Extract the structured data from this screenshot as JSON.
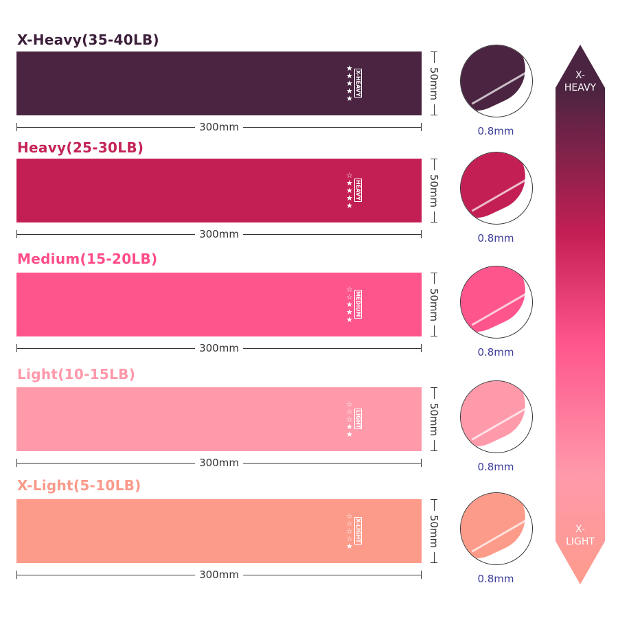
{
  "bands": [
    {
      "title": "X-Heavy(35-40LB)",
      "tag": "X-HEAVY",
      "stars_filled": 5,
      "stars_total": 5,
      "length": "300mm",
      "width": "50mm",
      "thickness": "0.8mm",
      "color": "#4a2440",
      "title_color": "#3c1f3a"
    },
    {
      "title": "Heavy(25-30LB)",
      "tag": "HEAVY",
      "stars_filled": 4,
      "stars_total": 5,
      "length": "300mm",
      "width": "50mm",
      "thickness": "0.8mm",
      "color": "#c41f55",
      "title_color": "#c42457"
    },
    {
      "title": "Medium(15-20LB)",
      "tag": "MEDIUM",
      "stars_filled": 3,
      "stars_total": 5,
      "length": "300mm",
      "width": "50mm",
      "thickness": "0.8mm",
      "color": "#fe558c",
      "title_color": "#ff4c88"
    },
    {
      "title": "Light(10-15LB)",
      "tag": "LIGHT",
      "stars_filled": 2,
      "stars_total": 5,
      "length": "300mm",
      "width": "50mm",
      "thickness": "0.8mm",
      "color": "#ff9aab",
      "title_color": "#ff98aa"
    },
    {
      "title": "X-Light(5-10LB)",
      "tag": "X-LIGHT",
      "stars_filled": 1,
      "stars_total": 5,
      "length": "300mm",
      "width": "50mm",
      "thickness": "0.8mm",
      "color": "#fd9b8b",
      "title_color": "#fa9a8a"
    }
  ],
  "scale": {
    "top_line1": "X-",
    "top_line2": "HEAVY",
    "bottom_line1": "X-",
    "bottom_line2": "LIGHT"
  }
}
